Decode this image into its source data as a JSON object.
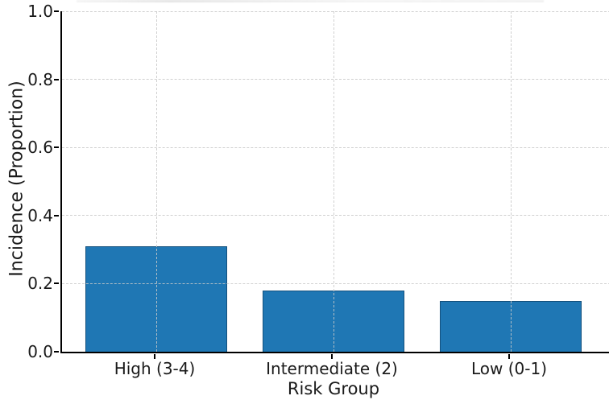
{
  "chart_data": {
    "type": "bar",
    "title": "",
    "xlabel": "Risk Group",
    "ylabel": "Incidence (Proportion)",
    "categories": [
      "High (3-4)",
      "Intermediate (2)",
      "Low (0-1)"
    ],
    "values": [
      0.31,
      0.18,
      0.15
    ],
    "ylim": [
      0.0,
      1.0
    ],
    "yticks": [
      0.0,
      0.2,
      0.4,
      0.6,
      0.8,
      1.0
    ],
    "ytick_labels": [
      "0.0",
      "0.2",
      "0.4",
      "0.6",
      "0.8",
      "1.0"
    ],
    "grid": {
      "horizontal": true,
      "vertical": true,
      "style": "dashed",
      "color": "#c9c9c9",
      "drawn_above_bars": true
    },
    "legend_position": "none",
    "colors": {
      "bar_fill": "#1f77b4",
      "bar_edge": "#14517d",
      "axis": "#000000",
      "text": "#1a1a1a"
    }
  }
}
